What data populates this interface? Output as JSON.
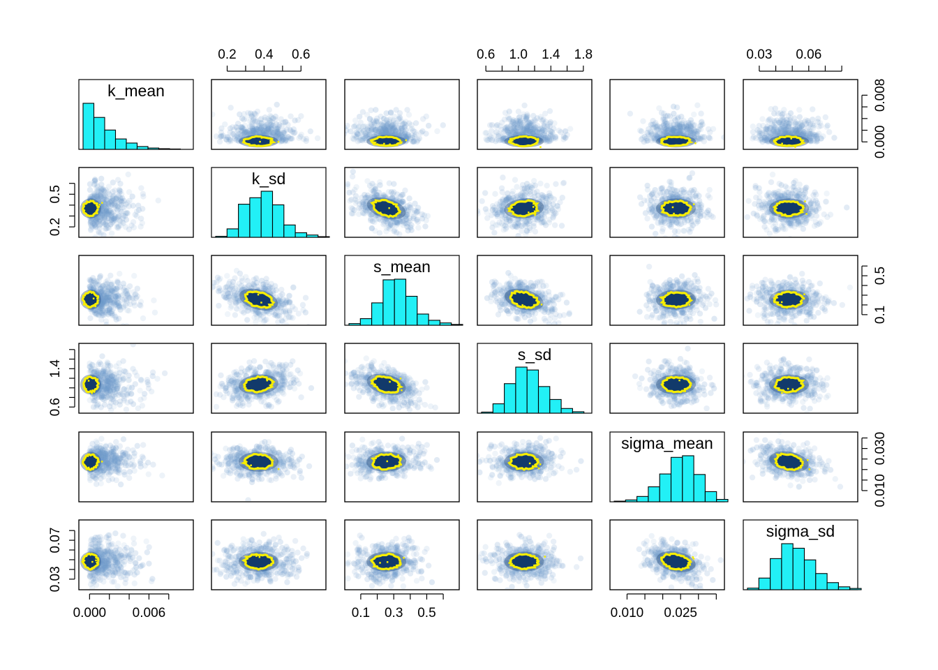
{
  "chart_data": {
    "type": "scatter",
    "kind": "pairs-plot",
    "colors": {
      "histogram_fill": "#22F0F6",
      "density_light": "#6f9ccc",
      "density_dark": "#123a6b",
      "contour": "#F7EE00"
    },
    "variables": [
      {
        "name": "k_mean",
        "range": [
          -0.0008,
          0.0102
        ],
        "ticks": [
          "0.000",
          "0.002",
          "0.004",
          "0.006",
          "0.008"
        ],
        "bottom_labels": [
          "0.000",
          "0.006"
        ],
        "right_labels": [
          "0.000",
          "0.008"
        ],
        "center": 0.0011,
        "spread": 0.0016,
        "skew": true,
        "hist": [
          6.2,
          4.3,
          2.6,
          1.4,
          0.85,
          0.38,
          0.18,
          0.09,
          0.05
        ]
      },
      {
        "name": "k_sd",
        "range": [
          0.13,
          0.72
        ],
        "ticks": [
          "0.2",
          "0.3",
          "0.4",
          "0.5",
          "0.6"
        ],
        "top_labels": [
          "0.2",
          "0.4",
          "0.6"
        ],
        "left_labels": [
          "0.2",
          "0.5"
        ],
        "center": 0.37,
        "spread": 0.085,
        "skew": false,
        "hist": [
          0.15,
          1.3,
          5.1,
          6.1,
          7.1,
          5.0,
          1.9,
          0.7,
          0.35,
          0.1
        ]
      },
      {
        "name": "s_mean",
        "range": [
          0.02,
          0.68
        ],
        "ticks": [
          "0.1",
          "0.2",
          "0.3",
          "0.4",
          "0.5",
          "0.6"
        ],
        "bottom_labels": [
          "0.1",
          "0.3",
          "0.5"
        ],
        "right_labels": [
          "0.1",
          "0.5"
        ],
        "center": 0.255,
        "spread": 0.085,
        "skew": false,
        "hist": [
          0.25,
          1.0,
          3.4,
          6.9,
          7.0,
          4.4,
          1.7,
          0.75,
          0.35,
          0.12
        ]
      },
      {
        "name": "s_sd",
        "range": [
          0.53,
          1.87
        ],
        "ticks": [
          "0.6",
          "0.8",
          "1.0",
          "1.2",
          "1.4",
          "1.6",
          "1.8"
        ],
        "top_labels": [
          "0.6",
          "1.0",
          "1.4",
          "1.8"
        ],
        "left_labels": [
          "0.6",
          "1.4"
        ],
        "center": 1.07,
        "spread": 0.17,
        "skew": false,
        "hist": [
          0.15,
          1.3,
          4.1,
          6.4,
          6.0,
          3.7,
          1.9,
          0.65,
          0.2
        ]
      },
      {
        "name": "sigma_mean",
        "range": [
          0.006,
          0.0365
        ],
        "ticks": [
          "0.010",
          "0.015",
          "0.020",
          "0.025",
          "0.030",
          "0.035"
        ],
        "bottom_labels": [
          "0.010",
          "0.025"
        ],
        "right_labels": [
          "0.010",
          "0.030"
        ],
        "center": 0.0237,
        "spread": 0.0033,
        "skew": false,
        "hist": [
          0.12,
          0.35,
          1.0,
          2.8,
          5.2,
          8.3,
          8.6,
          5.1,
          1.9,
          0.45
        ]
      },
      {
        "name": "sigma_sd",
        "range": [
          0.022,
          0.088
        ],
        "ticks": [
          "0.03",
          "0.04",
          "0.05",
          "0.06",
          "0.07",
          "0.08"
        ],
        "top_labels": [
          "0.03",
          "0.06"
        ],
        "left_labels": [
          "0.03",
          "0.07"
        ],
        "center": 0.048,
        "spread": 0.0085,
        "skew": false,
        "hist": [
          0.25,
          1.8,
          4.8,
          7.1,
          6.4,
          4.6,
          2.5,
          1.1,
          0.45,
          0.2
        ]
      }
    ],
    "correlations": {
      "k_sd|s_mean": -0.45,
      "s_mean|s_sd": -0.4,
      "sigma_mean|sigma_sd": -0.3,
      "k_sd|s_sd": 0.15,
      "s_mean|sigma_mean": 0.05
    }
  }
}
